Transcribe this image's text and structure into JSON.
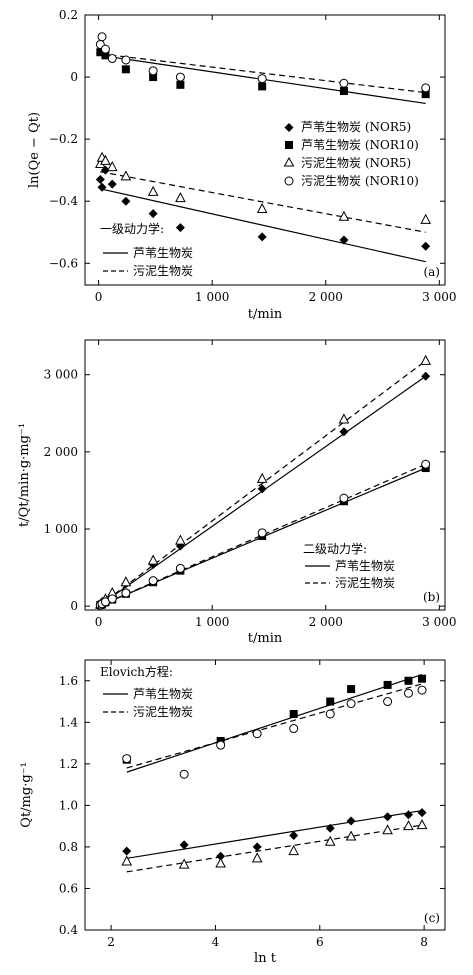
{
  "chart_data": [
    {
      "id": "a",
      "type": "scatter",
      "panel_label": "(a)",
      "xlabel": "t/min",
      "ylabel": "ln(Qe − Qt)",
      "xlim": [
        -120,
        3050
      ],
      "ylim": [
        -0.67,
        0.2
      ],
      "xticks": [
        0,
        1000,
        2000,
        3000
      ],
      "xticklabels": [
        "0",
        "1 000",
        "2 000",
        "3 000"
      ],
      "yticks": [
        0.2,
        0,
        -0.2,
        -0.4,
        -0.6
      ],
      "yticklabels": [
        "0.2",
        "0",
        "−0.2",
        "−0.4",
        "−0.6"
      ],
      "grid": false,
      "series": [
        {
          "name": "芦苇生物炭 (NOR5)",
          "marker": "diamond",
          "x": [
            15,
            30,
            60,
            120,
            240,
            480,
            720,
            1440,
            2160,
            2880
          ],
          "y": [
            -0.33,
            -0.355,
            -0.3,
            -0.345,
            -0.4,
            -0.44,
            -0.485,
            -0.515,
            -0.525,
            -0.545
          ]
        },
        {
          "name": "芦苇生物炭 (NOR10)",
          "marker": "square",
          "x": [
            15,
            60,
            240,
            480,
            720,
            1440,
            2160,
            2880
          ],
          "y": [
            0.08,
            0.07,
            0.025,
            0.0,
            -0.025,
            -0.03,
            -0.045,
            -0.055
          ]
        },
        {
          "name": "污泥生物炭 (NOR5)",
          "marker": "triangle-open",
          "x": [
            15,
            30,
            60,
            120,
            240,
            480,
            720,
            1440,
            2160,
            2880
          ],
          "y": [
            -0.28,
            -0.26,
            -0.27,
            -0.29,
            -0.32,
            -0.37,
            -0.39,
            -0.425,
            -0.45,
            -0.46
          ]
        },
        {
          "name": "污泥生物炭 (NOR10)",
          "marker": "circle-open",
          "x": [
            15,
            30,
            60,
            120,
            240,
            480,
            720,
            1440,
            2160,
            2880
          ],
          "y": [
            0.105,
            0.13,
            0.09,
            0.06,
            0.055,
            0.02,
            0.0,
            -0.005,
            -0.02,
            -0.035
          ]
        }
      ],
      "fits": [
        {
          "group": "芦苇生物炭",
          "dash": "solid",
          "x": [
            15,
            2880
          ],
          "y": [
            -0.36,
            -0.595
          ]
        },
        {
          "group": "芦苇生物炭",
          "dash": "solid",
          "x": [
            15,
            2880
          ],
          "y": [
            0.07,
            -0.085
          ]
        },
        {
          "group": "污泥生物炭",
          "dash": "dashed",
          "x": [
            15,
            2880
          ],
          "y": [
            -0.305,
            -0.5
          ]
        },
        {
          "group": "污泥生物炭",
          "dash": "dashed",
          "x": [
            15,
            2880
          ],
          "y": [
            0.075,
            -0.05
          ]
        }
      ],
      "legend_title": "一级动力学:",
      "legend_lines": [
        {
          "label": "芦苇生物炭",
          "dash": "solid"
        },
        {
          "label": "污泥生物炭",
          "dash": "dashed"
        }
      ],
      "legend_placement": "right-middle (markers), bottom-left (fits)"
    },
    {
      "id": "b",
      "type": "scatter",
      "panel_label": "(b)",
      "xlabel": "t/min",
      "ylabel": "t/Qt/min·g·mg⁻¹",
      "xlim": [
        -120,
        3050
      ],
      "ylim": [
        -50,
        3450
      ],
      "xticks": [
        0,
        1000,
        2000,
        3000
      ],
      "xticklabels": [
        "0",
        "1 000",
        "2 000",
        "3 000"
      ],
      "yticks": [
        0,
        1000,
        2000,
        3000
      ],
      "yticklabels": [
        "0",
        "1 000",
        "2 000",
        "3 000"
      ],
      "grid": false,
      "series": [
        {
          "name": "芦苇生物炭 (NOR5)",
          "marker": "diamond",
          "x": [
            15,
            30,
            60,
            120,
            240,
            480,
            720,
            1440,
            2160,
            2880
          ],
          "y": [
            20,
            40,
            75,
            150,
            290,
            540,
            780,
            1520,
            2260,
            2980
          ]
        },
        {
          "name": "芦苇生物炭 (NOR10)",
          "marker": "square",
          "x": [
            15,
            30,
            60,
            120,
            240,
            480,
            720,
            1440,
            2160,
            2880
          ],
          "y": [
            15,
            25,
            50,
            85,
            160,
            310,
            460,
            910,
            1360,
            1790
          ]
        },
        {
          "name": "污泥生物炭 (NOR5)",
          "marker": "triangle-open",
          "x": [
            15,
            30,
            60,
            120,
            240,
            480,
            720,
            1440,
            2160,
            2880
          ],
          "y": [
            20,
            45,
            90,
            170,
            310,
            590,
            850,
            1650,
            2420,
            3180
          ]
        },
        {
          "name": "污泥生物炭 (NOR10)",
          "marker": "circle-open",
          "x": [
            15,
            30,
            60,
            120,
            240,
            480,
            720,
            1440,
            2160,
            2880
          ],
          "y": [
            15,
            30,
            55,
            95,
            170,
            330,
            490,
            950,
            1400,
            1840
          ]
        }
      ],
      "fits": [
        {
          "group": "芦苇生物炭",
          "dash": "solid",
          "x": [
            0,
            2880
          ],
          "y": [
            0,
            2980
          ]
        },
        {
          "group": "芦苇生物炭",
          "dash": "solid",
          "x": [
            0,
            2880
          ],
          "y": [
            0,
            1790
          ]
        },
        {
          "group": "污泥生物炭",
          "dash": "dashed",
          "x": [
            0,
            2880
          ],
          "y": [
            0,
            3180
          ]
        },
        {
          "group": "污泥生物炭",
          "dash": "dashed",
          "x": [
            0,
            2880
          ],
          "y": [
            0,
            1840
          ]
        }
      ],
      "legend_title": "二级动力学:",
      "legend_lines": [
        {
          "label": "芦苇生物炭",
          "dash": "solid"
        },
        {
          "label": "污泥生物炭",
          "dash": "dashed"
        }
      ],
      "legend_placement": "bottom-right"
    },
    {
      "id": "c",
      "type": "scatter",
      "panel_label": "(c)",
      "xlabel": "ln t",
      "ylabel": "Qt/mg·g⁻¹",
      "xlim": [
        1.5,
        8.4
      ],
      "ylim": [
        0.4,
        1.7
      ],
      "xticks": [
        2,
        4,
        6,
        8
      ],
      "xticklabels": [
        "2",
        "4",
        "6",
        "8"
      ],
      "yticks": [
        0.4,
        0.6,
        0.8,
        1.0,
        1.2,
        1.4,
        1.6
      ],
      "yticklabels": [
        "0.4",
        "0.6",
        "0.8",
        "1.0",
        "1.2",
        "1.4",
        "1.6"
      ],
      "grid": false,
      "series": [
        {
          "name": "芦苇生物炭 (NOR5)",
          "marker": "diamond",
          "x": [
            2.3,
            3.4,
            4.1,
            4.8,
            5.5,
            6.2,
            6.6,
            7.3,
            7.7,
            7.96
          ],
          "y": [
            0.78,
            0.81,
            0.755,
            0.8,
            0.855,
            0.89,
            0.925,
            0.945,
            0.955,
            0.965
          ]
        },
        {
          "name": "芦苇生物炭 (NOR10)",
          "marker": "square",
          "x": [
            2.3,
            4.1,
            5.5,
            6.2,
            6.6,
            7.3,
            7.7,
            7.96
          ],
          "y": [
            1.22,
            1.31,
            1.44,
            1.5,
            1.56,
            1.58,
            1.6,
            1.61
          ]
        },
        {
          "name": "污泥生物炭 (NOR5)",
          "marker": "triangle-open",
          "x": [
            2.3,
            3.4,
            4.1,
            4.8,
            5.5,
            6.2,
            6.6,
            7.3,
            7.7,
            7.96
          ],
          "y": [
            0.73,
            0.715,
            0.72,
            0.745,
            0.78,
            0.825,
            0.85,
            0.88,
            0.9,
            0.905
          ]
        },
        {
          "name": "污泥生物炭 (NOR10)",
          "marker": "circle-open",
          "x": [
            2.3,
            3.4,
            4.1,
            4.8,
            5.5,
            6.2,
            6.6,
            7.3,
            7.7,
            7.96
          ],
          "y": [
            1.225,
            1.15,
            1.29,
            1.345,
            1.37,
            1.44,
            1.49,
            1.5,
            1.54,
            1.555
          ]
        }
      ],
      "fits": [
        {
          "group": "芦苇生物炭",
          "dash": "solid",
          "x": [
            2.3,
            7.96
          ],
          "y": [
            0.745,
            0.975
          ]
        },
        {
          "group": "芦苇生物炭",
          "dash": "solid",
          "x": [
            2.3,
            7.96
          ],
          "y": [
            1.16,
            1.63
          ]
        },
        {
          "group": "污泥生物炭",
          "dash": "dashed",
          "x": [
            2.3,
            7.96
          ],
          "y": [
            0.68,
            0.905
          ]
        },
        {
          "group": "污泥生物炭",
          "dash": "dashed",
          "x": [
            2.3,
            7.96
          ],
          "y": [
            1.18,
            1.585
          ]
        }
      ],
      "legend_title": "Elovich方程:",
      "legend_lines": [
        {
          "label": "芦苇生物炭",
          "dash": "solid"
        },
        {
          "label": "污泥生物炭",
          "dash": "dashed"
        }
      ],
      "legend_placement": "top-left"
    }
  ]
}
